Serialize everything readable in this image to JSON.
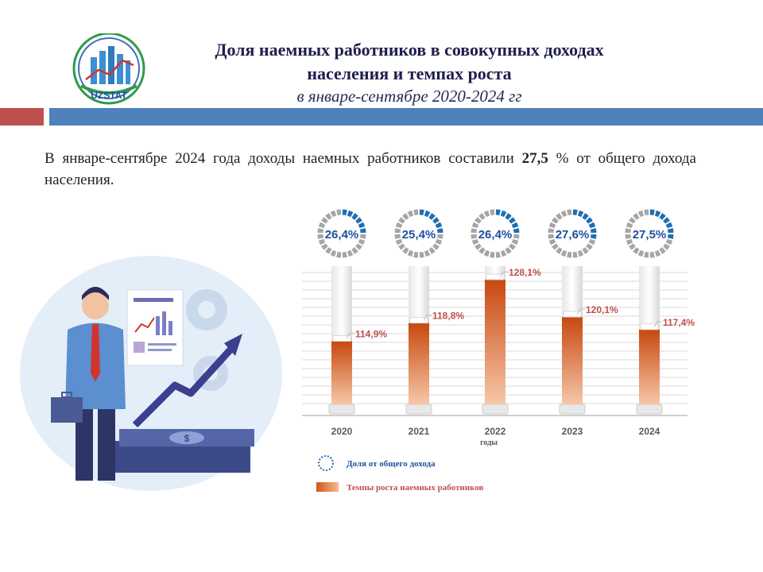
{
  "logo": {
    "text": "UZSTAT"
  },
  "header": {
    "title_line1": "Доля наемных работников в совокупных доходах",
    "title_line2": "населения и темпах роста",
    "subtitle": "в январе-сентябре 2020-2024 гг"
  },
  "summary": {
    "before": "В январе-сентябре 2024 года доходы наемных работников составили ",
    "value": "27,5",
    "after": " % от общего дохода населения."
  },
  "colors": {
    "accent_red": "#c0504d",
    "accent_blue": "#4f81bd",
    "bar_orange": "#d0571a",
    "donut_blue": "#1f6fb2",
    "donut_gray": "#a6a6a6"
  },
  "chart_data": {
    "type": "bar",
    "categories": [
      "2020",
      "2021",
      "2022",
      "2023",
      "2024"
    ],
    "xlabel": "годы",
    "series": [
      {
        "name": "Доля от общего дохода",
        "values": [
          26.4,
          25.4,
          26.4,
          27.6,
          27.5
        ],
        "labels": [
          "26,4%",
          "25,4%",
          "26,4%",
          "27,6%",
          "27,5%"
        ]
      },
      {
        "name": "Темпы роста наемных работников",
        "values": [
          114.9,
          118.8,
          128.1,
          120.1,
          117.4
        ],
        "labels": [
          "114,9%",
          "118,8%",
          "128,1%",
          "120,1%",
          "117,4%"
        ]
      }
    ],
    "ylim": [
      100,
      131
    ],
    "grid": true,
    "legend_position": "bottom"
  }
}
